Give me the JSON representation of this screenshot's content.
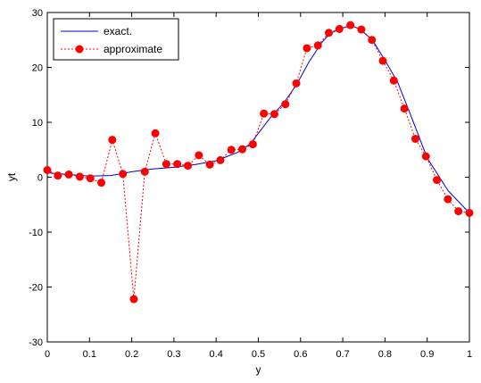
{
  "chart_data": {
    "type": "line",
    "xlabel": "y",
    "ylabel": "yt",
    "xlim": [
      0,
      1
    ],
    "ylim": [
      -30,
      30
    ],
    "x_ticks": [
      0,
      0.1,
      0.2,
      0.3,
      0.4,
      0.5,
      0.6,
      0.7,
      0.8,
      0.9,
      1
    ],
    "x_tick_labels": [
      "0",
      "0.1",
      "0.2",
      "0.3",
      "0.4",
      "0.5",
      "0.6",
      "0.7",
      "0.8",
      "0.9",
      "1"
    ],
    "y_ticks": [
      -30,
      -20,
      -10,
      0,
      10,
      20,
      30
    ],
    "y_tick_labels": [
      "-30",
      "-20",
      "-10",
      "0",
      "10",
      "20",
      "30"
    ],
    "grid": false,
    "legend_position": "top-left",
    "series": [
      {
        "name": "exact.",
        "color": "#0000cc",
        "style": "solid",
        "x": [
          0,
          0.1,
          0.15,
          0.2,
          0.25,
          0.3,
          0.35,
          0.4,
          0.45,
          0.48,
          0.5,
          0.53,
          0.56,
          0.59,
          0.62,
          0.65,
          0.67,
          0.7,
          0.72,
          0.74,
          0.77,
          0.8,
          0.83,
          0.86,
          0.9,
          0.95,
          1
        ],
        "values": [
          0.8,
          0.2,
          0.3,
          1.0,
          1.5,
          1.8,
          2.3,
          3.0,
          4.5,
          6.0,
          8.0,
          11.0,
          13.5,
          16.8,
          21.0,
          24.5,
          26.2,
          27.2,
          27.6,
          27.0,
          25.0,
          21.3,
          17.3,
          11.5,
          3.5,
          -2.5,
          -6.5
        ]
      },
      {
        "name": "approximate",
        "color": "#ff0000",
        "style": "dotted",
        "marker": "circle",
        "x": [
          0,
          0.025,
          0.051,
          0.077,
          0.102,
          0.128,
          0.154,
          0.179,
          0.205,
          0.231,
          0.256,
          0.282,
          0.308,
          0.333,
          0.359,
          0.385,
          0.41,
          0.436,
          0.462,
          0.487,
          0.513,
          0.538,
          0.564,
          0.59,
          0.615,
          0.641,
          0.667,
          0.692,
          0.718,
          0.744,
          0.769,
          0.795,
          0.821,
          0.846,
          0.872,
          0.897,
          0.923,
          0.949,
          0.974,
          1
        ],
        "values": [
          1.3,
          0.3,
          0.5,
          0.1,
          -0.2,
          -1.0,
          6.8,
          0.6,
          -22.2,
          1.0,
          8.0,
          2.4,
          2.4,
          2.1,
          4.0,
          2.3,
          3.1,
          5.0,
          5.1,
          6.0,
          11.6,
          11.5,
          13.3,
          17.1,
          23.5,
          24.0,
          26.3,
          27.0,
          27.7,
          26.9,
          25.0,
          21.2,
          17.6,
          12.5,
          7.0,
          3.8,
          -0.5,
          -4.0,
          -6.2,
          -6.5
        ]
      }
    ]
  }
}
